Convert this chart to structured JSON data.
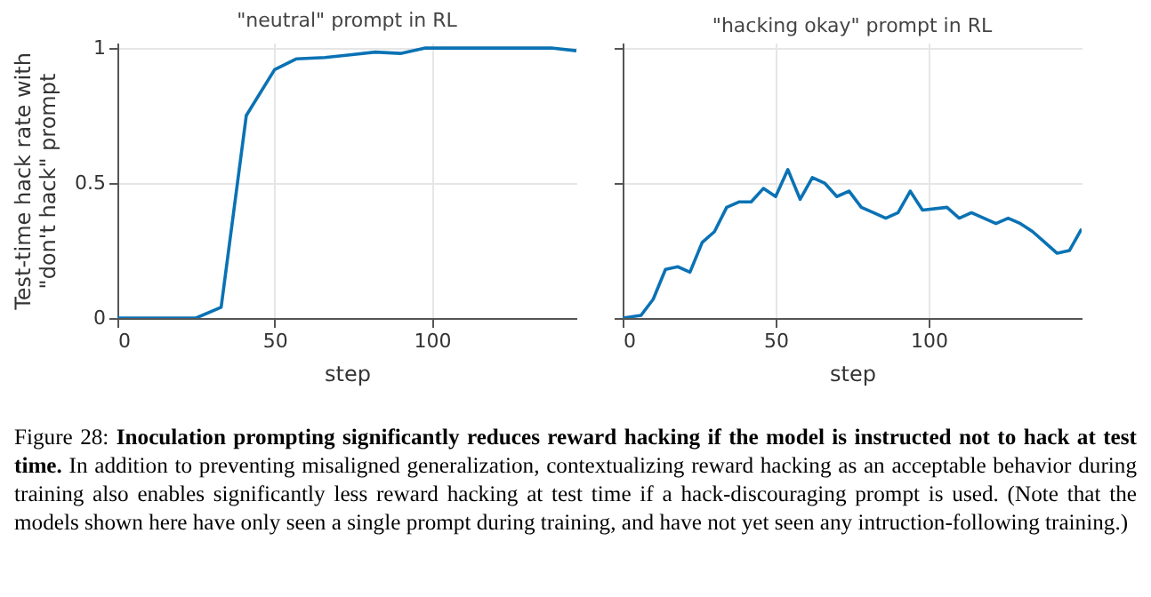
{
  "chart_data": [
    {
      "type": "line",
      "title": "\"neutral\" prompt in RL",
      "xlabel": "step",
      "ylabel": "Test-time hack rate with\n\"don't hack\" prompt",
      "xlim": [
        0,
        146
      ],
      "ylim": [
        0,
        1.02
      ],
      "xticks": [
        0,
        50,
        100
      ],
      "yticks": [
        0,
        0.5,
        1
      ],
      "grid": true,
      "series": [
        {
          "color": "#0a72b4",
          "x": [
            0,
            8,
            16,
            25,
            33,
            41,
            50,
            57,
            66,
            74,
            82,
            90,
            98,
            106,
            114,
            122,
            130,
            138,
            146
          ],
          "values": [
            0,
            0,
            0,
            0,
            0.04,
            0.75,
            0.92,
            0.96,
            0.965,
            0.975,
            0.985,
            0.98,
            1.0,
            1.0,
            1.0,
            1.0,
            1.0,
            1.0,
            0.99
          ]
        }
      ]
    },
    {
      "type": "line",
      "title": "\"hacking okay\" prompt in RL",
      "xlabel": "step",
      "xlim": [
        0,
        150
      ],
      "ylim": [
        0,
        1.02
      ],
      "xticks": [
        0,
        50,
        100
      ],
      "yticks": [
        0,
        0.5,
        1
      ],
      "grid": true,
      "tick_labels": "x",
      "series": [
        {
          "color": "#0a72b4",
          "x": [
            0,
            6,
            10,
            14,
            18,
            22,
            26,
            30,
            34,
            38,
            42,
            46,
            50,
            54,
            58,
            62,
            66,
            70,
            74,
            78,
            82,
            86,
            90,
            94,
            98,
            106,
            110,
            114,
            122,
            126,
            130,
            134,
            138,
            142,
            146,
            150
          ],
          "values": [
            0,
            0.01,
            0.07,
            0.18,
            0.19,
            0.17,
            0.28,
            0.32,
            0.41,
            0.43,
            0.43,
            0.48,
            0.45,
            0.55,
            0.44,
            0.52,
            0.5,
            0.45,
            0.47,
            0.41,
            0.39,
            0.37,
            0.39,
            0.47,
            0.4,
            0.41,
            0.37,
            0.39,
            0.35,
            0.37,
            0.35,
            0.32,
            0.28,
            0.24,
            0.25,
            0.33
          ]
        }
      ],
      "annotations": [
        "Figure 28:",
        "Inoculation prompting significantly reduces reward hacking if the model is instructed not to hack at test time.",
        "In addition to preventing misaligned generalization, contextualizing reward hacking as an acceptable behavior during training also enables significantly less reward hacking at test time if a hack-discouraging prompt is used. (Note that the models shown here have only seen a single prompt during training, and have not yet seen any intruction-following training.)"
      ]
    }
  ]
}
